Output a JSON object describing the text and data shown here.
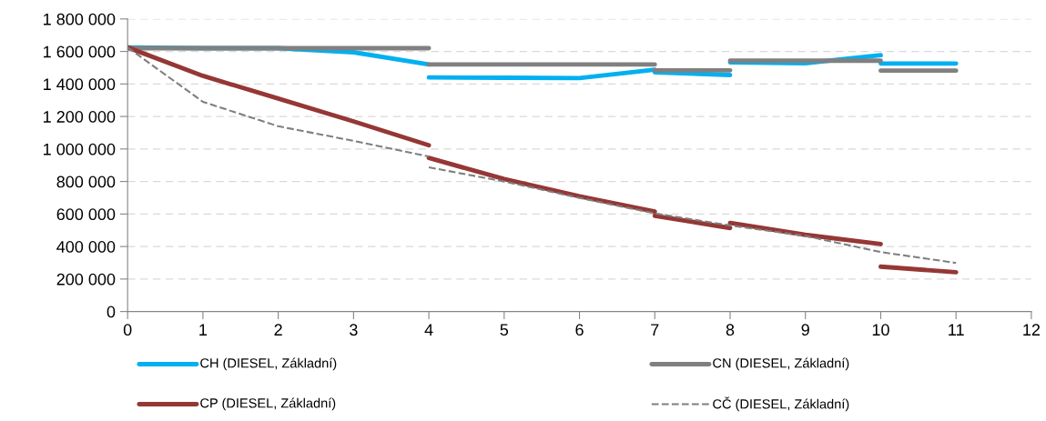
{
  "chart_data": {
    "type": "line",
    "series": [
      {
        "name": "CH (DIESEL, Základní)",
        "color": "#00b0f0",
        "line_style": "solid",
        "x": [
          0,
          1,
          2,
          3,
          4
        ],
        "values": [
          1625000,
          1620000,
          1620000,
          1595000,
          1520000
        ]
      },
      {
        "color": "#00b0f0",
        "line_style": "solid",
        "x": [
          4,
          5,
          6,
          7
        ],
        "values": [
          1440000,
          1438000,
          1436000,
          1488000
        ]
      },
      {
        "color": "#00b0f0",
        "line_style": "solid",
        "x": [
          7,
          8
        ],
        "values": [
          1472000,
          1455000
        ]
      },
      {
        "color": "#00b0f0",
        "line_style": "solid",
        "x": [
          8,
          9,
          10
        ],
        "values": [
          1533000,
          1528000,
          1577000
        ]
      },
      {
        "color": "#00b0f0",
        "line_style": "solid",
        "x": [
          10,
          11
        ],
        "values": [
          1526000,
          1526000
        ]
      },
      {
        "name": "CN (DIESEL, Základní)",
        "color": "#808080",
        "line_style": "solid",
        "x": [
          0,
          4
        ],
        "values": [
          1620000,
          1620000
        ]
      },
      {
        "color": "#808080",
        "line_style": "solid",
        "x": [
          4,
          7
        ],
        "values": [
          1520000,
          1520000
        ]
      },
      {
        "color": "#808080",
        "line_style": "solid",
        "x": [
          7,
          8
        ],
        "values": [
          1484000,
          1484000
        ]
      },
      {
        "color": "#808080",
        "line_style": "solid",
        "x": [
          8,
          10
        ],
        "values": [
          1543000,
          1543000
        ]
      },
      {
        "color": "#808080",
        "line_style": "solid",
        "x": [
          10,
          11
        ],
        "values": [
          1482000,
          1482000
        ]
      },
      {
        "name": "CP (DIESEL, Základní)",
        "color": "#953735",
        "line_style": "solid",
        "x": [
          0,
          1,
          2,
          3,
          4
        ],
        "values": [
          1625000,
          1450000,
          1310000,
          1170000,
          1023000
        ]
      },
      {
        "color": "#953735",
        "line_style": "solid",
        "x": [
          4,
          5,
          6,
          7
        ],
        "values": [
          945000,
          815000,
          709000,
          615000
        ]
      },
      {
        "color": "#953735",
        "line_style": "solid",
        "x": [
          7,
          8
        ],
        "values": [
          589000,
          514000
        ]
      },
      {
        "color": "#953735",
        "line_style": "solid",
        "x": [
          8,
          9,
          10
        ],
        "values": [
          545000,
          472000,
          415000
        ]
      },
      {
        "color": "#953735",
        "line_style": "solid",
        "x": [
          10,
          11
        ],
        "values": [
          276000,
          242000
        ]
      },
      {
        "name": "CČ (DIESEL, Základní)",
        "color": "#7f7f7f",
        "line_style": "dashed",
        "x": [
          0,
          1,
          2,
          3,
          4
        ],
        "values": [
          1625000,
          1290000,
          1140000,
          1050000,
          954000
        ]
      },
      {
        "color": "#7f7f7f",
        "line_style": "dashed",
        "x": [
          4,
          5,
          6,
          7,
          8,
          9,
          10,
          11
        ],
        "values": [
          887000,
          800000,
          699000,
          604000,
          530000,
          465000,
          366000,
          299000
        ]
      }
    ],
    "xlim": [
      0,
      12
    ],
    "xticks": [
      0,
      1,
      2,
      3,
      4,
      5,
      6,
      7,
      8,
      9,
      10,
      11,
      12
    ],
    "ylim": [
      0,
      1800000
    ],
    "yticks": [
      0,
      {
        "value": 200000,
        "label": "200 000"
      },
      {
        "value": 400000,
        "label": "400 000"
      },
      {
        "value": 600000,
        "label": "600 000"
      },
      {
        "value": 800000,
        "label": "800 000"
      },
      {
        "value": 1000000,
        "label": "1 000 000"
      },
      {
        "value": 1200000,
        "label": "1 200 000"
      },
      {
        "value": 1400000,
        "label": "1 400 000"
      },
      {
        "value": 1600000,
        "label": "1 600 000"
      },
      {
        "value": 1800000,
        "label": "1 800 000"
      }
    ],
    "grid": "y",
    "legend": "bottom"
  }
}
